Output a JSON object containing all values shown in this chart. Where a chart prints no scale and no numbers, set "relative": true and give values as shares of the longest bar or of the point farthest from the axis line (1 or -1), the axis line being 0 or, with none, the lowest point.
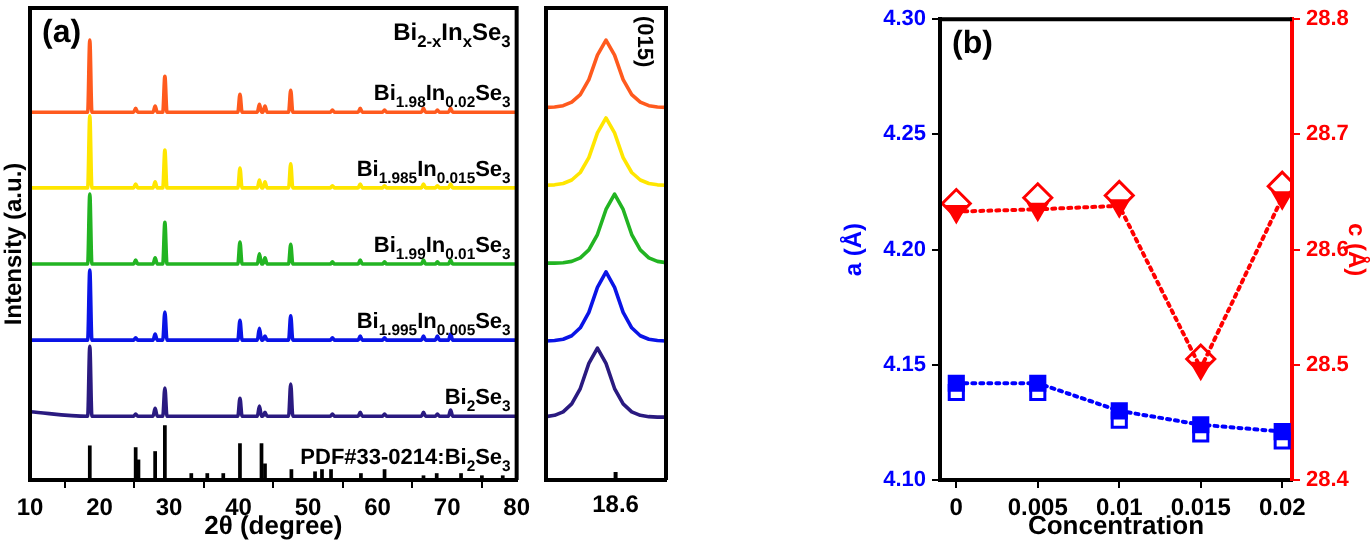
{
  "chart_data": [
    {
      "type": "line",
      "relative": true,
      "xlabel": "2θ (degree)",
      "ylabel": "Intensity (a.u.)",
      "annotations": [
        "(a)",
        "Bi$_{2-x}$In$_{x}$Se$_{3}$"
      ],
      "xlim": [
        10,
        80
      ],
      "xticks": [
        10,
        20,
        30,
        40,
        50,
        60,
        70,
        80
      ],
      "tick_labels": "x",
      "grid": false,
      "legend": false,
      "x": [
        10,
        18.3,
        18.6,
        18.9,
        24.9,
        25.2,
        25.5,
        27.7,
        28.0,
        28.3,
        29.1,
        29.4,
        29.7,
        39.9,
        40.2,
        40.5,
        42.7,
        43.0,
        43.3,
        43.5,
        43.8,
        44.1,
        47.2,
        47.5,
        47.8,
        53.2,
        53.5,
        53.8,
        57.2,
        57.5,
        57.8,
        60.7,
        61.0,
        61.3,
        66.3,
        66.6,
        66.9,
        68.3,
        68.6,
        68.9,
        70.2,
        70.5,
        70.8,
        80
      ],
      "series": [
        {
          "name": "Bi$_{1.98}$In$_{0.02}$Se$_{3}$",
          "color": "#ff5a1e",
          "values": [
            0.836,
            0.836,
            1.0,
            0.836,
            0.836,
            0.845,
            0.836,
            0.836,
            0.85,
            0.836,
            0.836,
            0.918,
            0.836,
            0.836,
            0.877,
            0.836,
            0.836,
            0.854,
            0.836,
            0.836,
            0.85,
            0.836,
            0.836,
            0.886,
            0.836,
            0.836,
            0.841,
            0.836,
            0.836,
            0.845,
            0.836,
            0.836,
            0.841,
            0.836,
            0.836,
            0.845,
            0.836,
            0.836,
            0.841,
            0.836,
            0.836,
            0.845,
            0.836,
            0.836
          ]
        },
        {
          "name": "Bi$_{1.985}$In$_{0.015}$Se$_{3}$",
          "color": "#ffe600",
          "values": [
            0.664,
            0.664,
            0.828,
            0.664,
            0.664,
            0.673,
            0.664,
            0.664,
            0.678,
            0.664,
            0.664,
            0.75,
            0.664,
            0.664,
            0.709,
            0.664,
            0.664,
            0.682,
            0.664,
            0.664,
            0.678,
            0.664,
            0.664,
            0.719,
            0.664,
            0.664,
            0.669,
            0.664,
            0.664,
            0.673,
            0.664,
            0.664,
            0.669,
            0.664,
            0.664,
            0.673,
            0.664,
            0.664,
            0.669,
            0.664,
            0.664,
            0.673,
            0.664,
            0.664
          ]
        },
        {
          "name": "Bi$_{1.99}$In$_{0.01}$Se$_{3}$",
          "color": "#22b422",
          "values": [
            0.491,
            0.491,
            0.65,
            0.491,
            0.491,
            0.5,
            0.491,
            0.491,
            0.505,
            0.491,
            0.491,
            0.586,
            0.491,
            0.491,
            0.541,
            0.491,
            0.491,
            0.514,
            0.491,
            0.491,
            0.505,
            0.491,
            0.491,
            0.536,
            0.491,
            0.491,
            0.496,
            0.491,
            0.491,
            0.5,
            0.491,
            0.491,
            0.496,
            0.491,
            0.491,
            0.5,
            0.491,
            0.491,
            0.496,
            0.491,
            0.491,
            0.5,
            0.491,
            0.491
          ]
        },
        {
          "name": "Bi$_{1.995}$In$_{0.005}$Se$_{3}$",
          "color": "#0a14e6",
          "values": [
            0.318,
            0.318,
            0.477,
            0.318,
            0.318,
            0.323,
            0.318,
            0.318,
            0.332,
            0.318,
            0.318,
            0.382,
            0.318,
            0.318,
            0.363,
            0.318,
            0.318,
            0.345,
            0.318,
            0.318,
            0.327,
            0.318,
            0.318,
            0.373,
            0.318,
            0.318,
            0.323,
            0.318,
            0.318,
            0.327,
            0.318,
            0.318,
            0.323,
            0.318,
            0.318,
            0.327,
            0.318,
            0.318,
            0.327,
            0.318,
            0.318,
            0.332,
            0.318,
            0.318
          ]
        },
        {
          "name": "Bi$_{2}$Se$_{3}$",
          "color": "#2a1a80",
          "values": [
            0.155,
            0.145,
            0.304,
            0.145,
            0.145,
            0.15,
            0.145,
            0.145,
            0.163,
            0.145,
            0.145,
            0.209,
            0.145,
            0.145,
            0.186,
            0.145,
            0.145,
            0.168,
            0.145,
            0.145,
            0.154,
            0.145,
            0.145,
            0.218,
            0.145,
            0.145,
            0.15,
            0.145,
            0.145,
            0.154,
            0.145,
            0.145,
            0.15,
            0.145,
            0.145,
            0.154,
            0.145,
            0.145,
            0.15,
            0.145,
            0.145,
            0.159,
            0.145,
            0.145
          ]
        },
        {
          "name": "PDF#33-0214:Bi$_{2}$Se$_{3}$",
          "type": "bar",
          "color": "#000000",
          "x": [
            18.6,
            25.2,
            25.6,
            28.0,
            29.4,
            33.2,
            35.5,
            37.8,
            40.2,
            43.3,
            43.8,
            47.6,
            51.0,
            52.0,
            53.3,
            57.6,
            61.0,
            66.6,
            68.5,
            72.0,
            75.0,
            78.0
          ],
          "values": [
            0.077,
            0.073,
            0.045,
            0.064,
            0.123,
            0.014,
            0.014,
            0.014,
            0.082,
            0.082,
            0.036,
            0.023,
            0.018,
            0.023,
            0.023,
            0.014,
            0.023,
            0.009,
            0.014,
            0.014,
            0.009,
            0.009
          ]
        }
      ]
    },
    {
      "type": "line",
      "relative": true,
      "annotations": [
        "(015)",
        "18.6"
      ],
      "tick_labels": false,
      "grid": false,
      "legend": false,
      "categories": [
        null,
        null,
        null,
        null,
        null,
        null,
        null,
        null,
        null,
        null,
        null,
        null,
        null,
        null,
        null
      ],
      "series": [
        {
          "color": "#ff5a1e",
          "values": [
            0.847,
            0.848,
            0.851,
            0.859,
            0.876,
            0.91,
            0.966,
            1.0,
            0.966,
            0.91,
            0.876,
            0.859,
            0.851,
            0.848,
            0.847
          ]
        },
        {
          "color": "#ffe600",
          "values": [
            0.67,
            0.671,
            0.674,
            0.682,
            0.699,
            0.733,
            0.789,
            0.823,
            0.789,
            0.733,
            0.699,
            0.682,
            0.674,
            0.671,
            0.67
          ]
        },
        {
          "color": "#22b422",
          "values": [
            0.493,
            0.493,
            0.494,
            0.497,
            0.505,
            0.523,
            0.558,
            0.615,
            0.65,
            0.615,
            0.558,
            0.523,
            0.505,
            0.497,
            0.494
          ]
        },
        {
          "color": "#0a14e6",
          "values": [
            0.316,
            0.317,
            0.32,
            0.328,
            0.346,
            0.381,
            0.438,
            0.473,
            0.438,
            0.381,
            0.346,
            0.328,
            0.32,
            0.317,
            0.316
          ]
        },
        {
          "color": "#2a1a80",
          "values": [
            0.144,
            0.147,
            0.155,
            0.173,
            0.208,
            0.265,
            0.3,
            0.265,
            0.208,
            0.173,
            0.155,
            0.147,
            0.144,
            0.143,
            0.143
          ]
        }
      ]
    },
    {
      "type": "line",
      "xlabel": "Concentration",
      "ylabel": "a (Å)",
      "y2label": "c (Å)",
      "annotations": [
        "(b)"
      ],
      "grid": false,
      "legend": false,
      "x": [
        0,
        0.005,
        0.01,
        0.015,
        0.02
      ],
      "xlim": [
        -0.001,
        0.0206
      ],
      "xticks": [
        0,
        0.005,
        0.01,
        0.015,
        0.02
      ],
      "ylim": [
        4.1,
        4.3
      ],
      "yticks": [
        {
          "value": 4.1,
          "label": "4.10"
        },
        {
          "value": 4.15,
          "label": "4.15"
        },
        {
          "value": 4.2,
          "label": "4.20"
        },
        {
          "value": 4.25,
          "label": "4.25"
        },
        {
          "value": 4.3,
          "label": "4.30"
        }
      ],
      "y2lim": [
        28.4,
        28.8
      ],
      "y2ticks": [
        28.4,
        28.5,
        28.6,
        28.7,
        28.8
      ],
      "series": [
        {
          "color": "#0000ff",
          "marker": "square",
          "line_style": "dotted",
          "values": [
            4.142,
            4.142,
            4.13,
            4.124,
            4.121
          ]
        },
        {
          "type": "scatter",
          "color": "#0000ff",
          "marker": "square",
          "values": [
            4.138,
            4.138,
            4.126,
            4.12,
            4.117
          ]
        },
        {
          "axis": "y2",
          "color": "#ff0000",
          "marker": "triangle",
          "line_style": "dotted",
          "values": [
            28.633,
            28.635,
            28.638,
            28.497,
            28.645
          ]
        },
        {
          "type": "scatter",
          "axis": "y2",
          "color": "#ff0000",
          "marker": "diamond",
          "values": [
            28.64,
            28.645,
            28.647,
            28.505,
            28.655
          ]
        }
      ]
    }
  ]
}
